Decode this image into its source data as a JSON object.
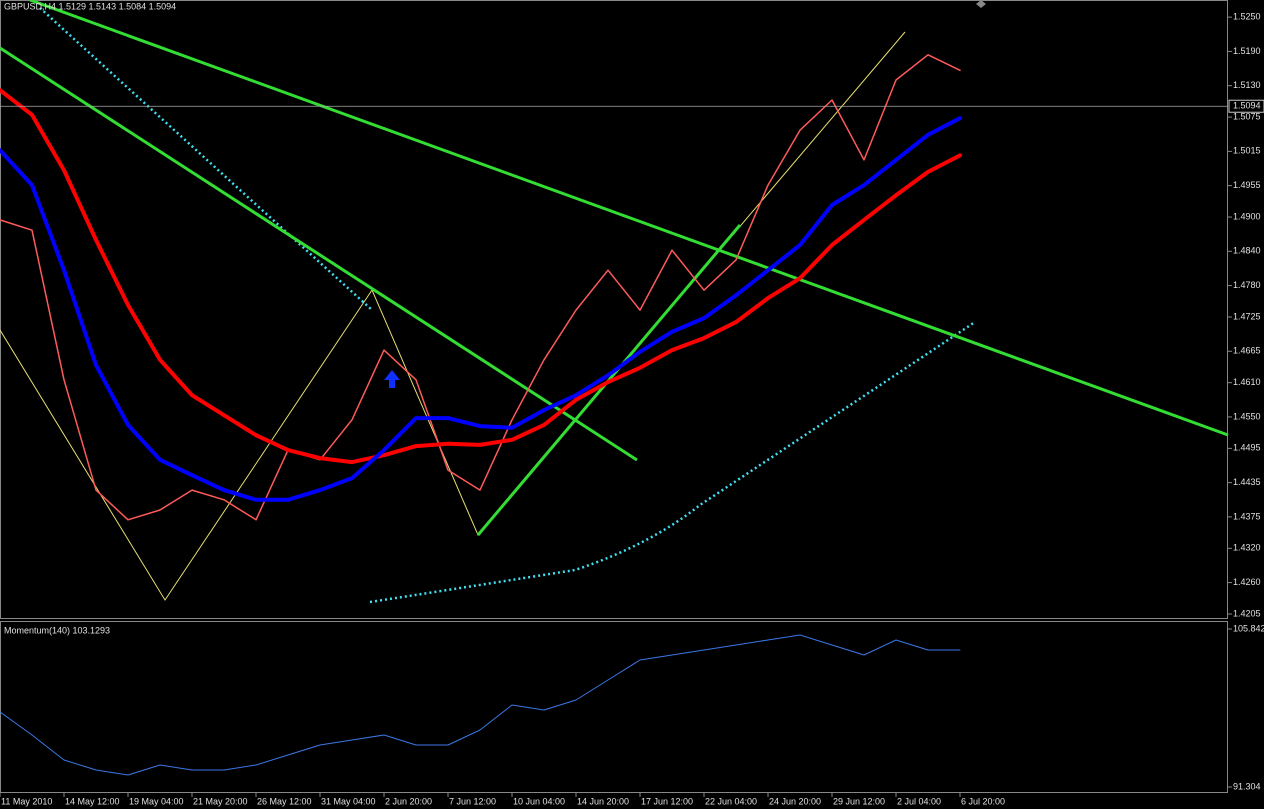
{
  "chart_data": [
    {
      "type": "line",
      "title": "GBPUSD,H4  1.5129 1.5143 1.5084 1.5094",
      "series": [
        {
          "color": "#ff5a5a",
          "values": [
            1.4895,
            1.4877,
            1.4615,
            1.4422,
            1.437,
            1.4387,
            1.4422,
            1.4405,
            1.437,
            1.4492,
            1.4475,
            1.4545,
            1.4667,
            1.4615,
            1.4457,
            1.4422,
            1.4545,
            1.465,
            1.4737,
            1.4807,
            1.4737,
            1.4842,
            1.4772,
            1.4825,
            1.4956,
            1.5052,
            1.5105,
            1.5,
            1.514,
            1.5184,
            1.5157
          ]
        },
        {
          "color": "#ff0000",
          "values": [
            1.5122,
            1.5079,
            1.4982,
            1.486,
            1.4746,
            1.465,
            1.4588,
            1.4553,
            1.4518,
            1.4492,
            1.4478,
            1.4471,
            1.4483,
            1.4499,
            1.4503,
            1.4501,
            1.451,
            1.4536,
            1.458,
            1.4611,
            1.4636,
            1.4667,
            1.4688,
            1.4716,
            1.4758,
            1.4793,
            1.4851,
            1.4895,
            1.4938,
            1.4979,
            1.5008
          ]
        },
        {
          "color": "#0000ff",
          "values": [
            1.5017,
            1.4956,
            1.4807,
            1.4641,
            1.4536,
            1.4475,
            1.4448,
            1.4422,
            1.4405,
            1.4405,
            1.4422,
            1.4443,
            1.4492,
            1.4548,
            1.4548,
            1.4534,
            1.4531,
            1.4562,
            1.4588,
            1.4623,
            1.4664,
            1.4699,
            1.4723,
            1.4763,
            1.4807,
            1.4851,
            1.4921,
            1.4956,
            1.5,
            1.5044,
            1.5073
          ]
        }
      ],
      "current_price": 1.5094,
      "ylim": [
        1.4198,
        1.528
      ],
      "yticks": [
        {
          "value": 1.525,
          "label": "1.5250"
        },
        {
          "value": 1.519,
          "label": "1.5190"
        },
        {
          "value": 1.513,
          "label": "1.5130"
        },
        1.5075,
        1.5015,
        1.4955,
        {
          "value": 1.49,
          "label": "1.4900"
        },
        {
          "value": 1.484,
          "label": "1.4840"
        },
        {
          "value": 1.478,
          "label": "1.4780"
        },
        1.4725,
        1.4665,
        {
          "value": 1.461,
          "label": "1.4610"
        },
        {
          "value": 1.455,
          "label": "1.4550"
        },
        1.4495,
        1.4435,
        1.4375,
        {
          "value": 1.432,
          "label": "1.4320"
        },
        {
          "value": 1.426,
          "label": "1.4260"
        },
        1.4205
      ]
    },
    {
      "type": "line",
      "title": "Momentum(140) 103.1293",
      "categories": [
        "11 May 2010",
        null,
        "14 May 12:00",
        null,
        "19 May 04:00",
        null,
        "21 May 20:00",
        null,
        "26 May 12:00",
        null,
        "31 May 04:00",
        null,
        "2 Jun 20:00",
        null,
        "7 Jun 12:00",
        null,
        "10 Jun 04:00",
        null,
        "14 Jun 20:00",
        null,
        "17 Jun 12:00",
        null,
        "22 Jun 04:00",
        null,
        "24 Jun 20:00",
        null,
        "29 Jun 12:00",
        null,
        "2 Jul 04:00",
        null,
        "6 Jul 20:00"
      ],
      "series": [
        {
          "color": "#3c78e6",
          "values": [
            98.21,
            96.09,
            93.79,
            92.87,
            92.41,
            93.33,
            92.87,
            92.87,
            93.33,
            94.25,
            95.17,
            95.63,
            96.09,
            95.17,
            95.17,
            96.55,
            98.85,
            98.39,
            99.31,
            101.15,
            102.99,
            103.45,
            103.91,
            104.37,
            104.83,
            105.29,
            104.37,
            103.45,
            104.83,
            103.91,
            103.91
          ]
        }
      ],
      "ylim": [
        91.304,
        105.842
      ],
      "yticks": [
        105.842,
        91.304
      ]
    }
  ]
}
